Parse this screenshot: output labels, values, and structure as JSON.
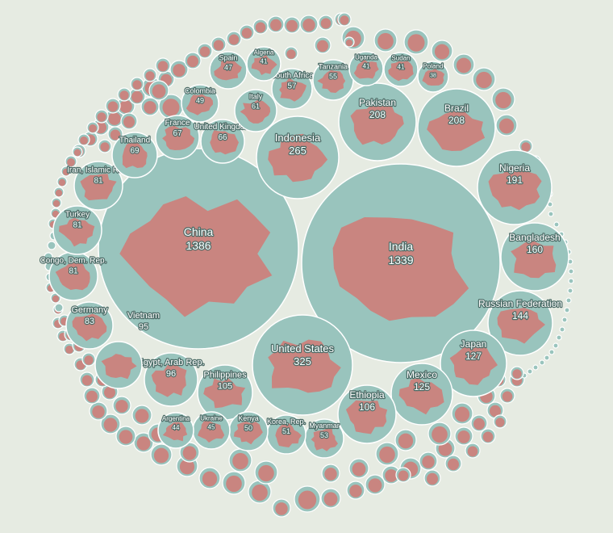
{
  "chart_data": {
    "type": "packed-bubble",
    "value_unit": "",
    "colors": {
      "background": "#e6ebe2",
      "bubble": "#99c4bd",
      "bubble_stroke": "#ffffff",
      "country": "#c98580"
    },
    "countries": [
      {
        "name": "China",
        "value": 1386
      },
      {
        "name": "India",
        "value": 1339
      },
      {
        "name": "United States",
        "value": 325
      },
      {
        "name": "Indonesia",
        "value": 265
      },
      {
        "name": "Pakistan",
        "value": 208
      },
      {
        "name": "Brazil",
        "value": 208
      },
      {
        "name": "Nigeria",
        "value": 191
      },
      {
        "name": "Bangladesh",
        "value": 160
      },
      {
        "name": "Russian Federation",
        "value": 144
      },
      {
        "name": "Japan",
        "value": 127
      },
      {
        "name": "Mexico",
        "value": 125
      },
      {
        "name": "Ethiopia",
        "value": 106
      },
      {
        "name": "Philippines",
        "value": 105
      },
      {
        "name": "Egypt, Arab Rep.",
        "value": 96
      },
      {
        "name": "Vietnam",
        "value": 95
      },
      {
        "name": "Germany",
        "value": 83
      },
      {
        "name": "Congo, Dem. Rep.",
        "value": 81
      },
      {
        "name": "Turkey",
        "value": 81
      },
      {
        "name": "Iran, Islamic Rep.",
        "value": 81
      },
      {
        "name": "Thailand",
        "value": 69
      },
      {
        "name": "France",
        "value": 67
      },
      {
        "name": "United Kingdom",
        "value": 66
      },
      {
        "name": "Italy",
        "value": 61
      },
      {
        "name": "South Africa",
        "value": 57
      },
      {
        "name": "Tanzania",
        "value": 55
      },
      {
        "name": "Myanmar",
        "value": 53
      },
      {
        "name": "Korea, Rep.",
        "value": 51
      },
      {
        "name": "Kenya",
        "value": 50
      },
      {
        "name": "Colombia",
        "value": 49
      },
      {
        "name": "Spain",
        "value": 47
      },
      {
        "name": "Ukraine",
        "value": 45
      },
      {
        "name": "Argentina",
        "value": 44
      },
      {
        "name": "Algeria",
        "value": 41
      },
      {
        "name": "Uganda",
        "value": 41
      },
      {
        "name": "Sudan",
        "value": 41
      },
      {
        "name": "Poland",
        "value": 38
      }
    ]
  }
}
